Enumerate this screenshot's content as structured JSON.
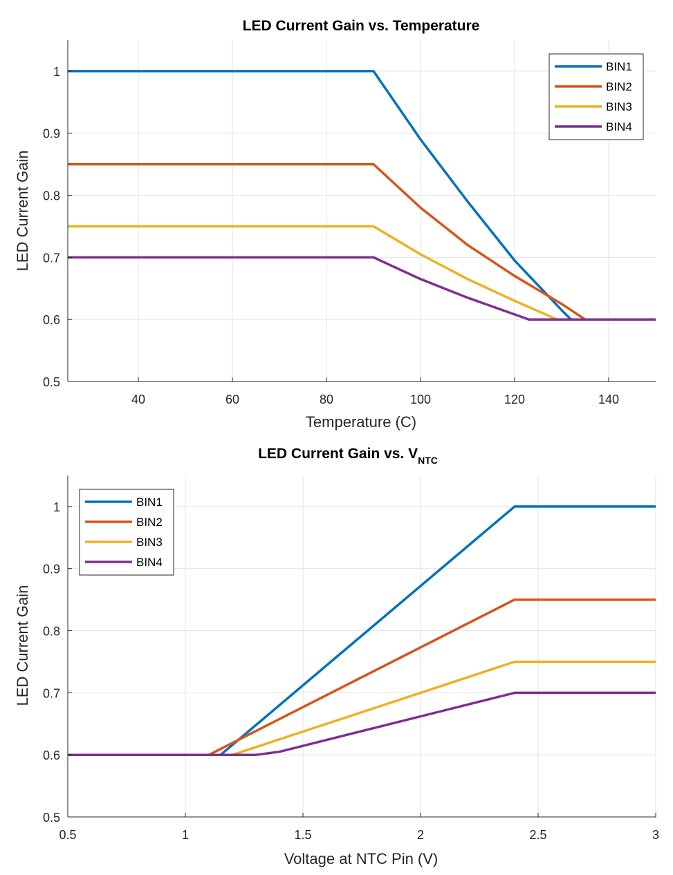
{
  "chart_data": [
    {
      "type": "line",
      "title": "LED Current Gain vs. Temperature",
      "xlabel": "Temperature (C)",
      "ylabel": "LED Current Gain",
      "xlim": [
        25,
        150
      ],
      "ylim": [
        0.5,
        1.05
      ],
      "xticks": [
        40,
        60,
        80,
        100,
        120,
        140
      ],
      "yticks": [
        0.5,
        0.6,
        0.7,
        0.8,
        0.9,
        1
      ],
      "grid": true,
      "legend_position": "top-right",
      "series": [
        {
          "name": "BIN1",
          "color": "#0072BD",
          "x": [
            25,
            90,
            100,
            110,
            120,
            130,
            132,
            150
          ],
          "y": [
            1,
            1,
            0.89,
            0.79,
            0.695,
            0.615,
            0.6,
            0.6
          ]
        },
        {
          "name": "BIN2",
          "color": "#D95319",
          "x": [
            25,
            90,
            100,
            110,
            120,
            130,
            135,
            150
          ],
          "y": [
            0.85,
            0.85,
            0.78,
            0.72,
            0.67,
            0.625,
            0.6,
            0.6
          ]
        },
        {
          "name": "BIN3",
          "color": "#EDB120",
          "x": [
            25,
            90,
            100,
            110,
            120,
            129,
            150
          ],
          "y": [
            0.75,
            0.75,
            0.705,
            0.665,
            0.63,
            0.6,
            0.6
          ]
        },
        {
          "name": "BIN4",
          "color": "#7E2F8E",
          "x": [
            25,
            90,
            100,
            110,
            123,
            150
          ],
          "y": [
            0.7,
            0.7,
            0.665,
            0.635,
            0.6,
            0.6
          ]
        }
      ]
    },
    {
      "type": "line",
      "title": "LED Current Gain vs. V",
      "title_subscript": "NTC",
      "xlabel": "Voltage at NTC Pin (V)",
      "ylabel": "LED Current Gain",
      "xlim": [
        0.5,
        3
      ],
      "ylim": [
        0.5,
        1.05
      ],
      "xticks": [
        0.5,
        1,
        1.5,
        2,
        2.5,
        3
      ],
      "yticks": [
        0.5,
        0.6,
        0.7,
        0.8,
        0.9,
        1
      ],
      "grid": true,
      "legend_position": "top-left",
      "series": [
        {
          "name": "BIN1",
          "color": "#0072BD",
          "x": [
            0.5,
            1.15,
            2.4,
            3
          ],
          "y": [
            0.6,
            0.6,
            1,
            1
          ]
        },
        {
          "name": "BIN2",
          "color": "#D95319",
          "x": [
            0.5,
            1.1,
            2.4,
            3
          ],
          "y": [
            0.6,
            0.6,
            0.85,
            0.85
          ]
        },
        {
          "name": "BIN3",
          "color": "#EDB120",
          "x": [
            0.5,
            1.2,
            2.4,
            3
          ],
          "y": [
            0.6,
            0.6,
            0.75,
            0.75
          ]
        },
        {
          "name": "BIN4",
          "color": "#7E2F8E",
          "x": [
            0.5,
            1.3,
            1.4,
            2.4,
            3
          ],
          "y": [
            0.6,
            0.6,
            0.605,
            0.7,
            0.7
          ]
        }
      ]
    }
  ]
}
